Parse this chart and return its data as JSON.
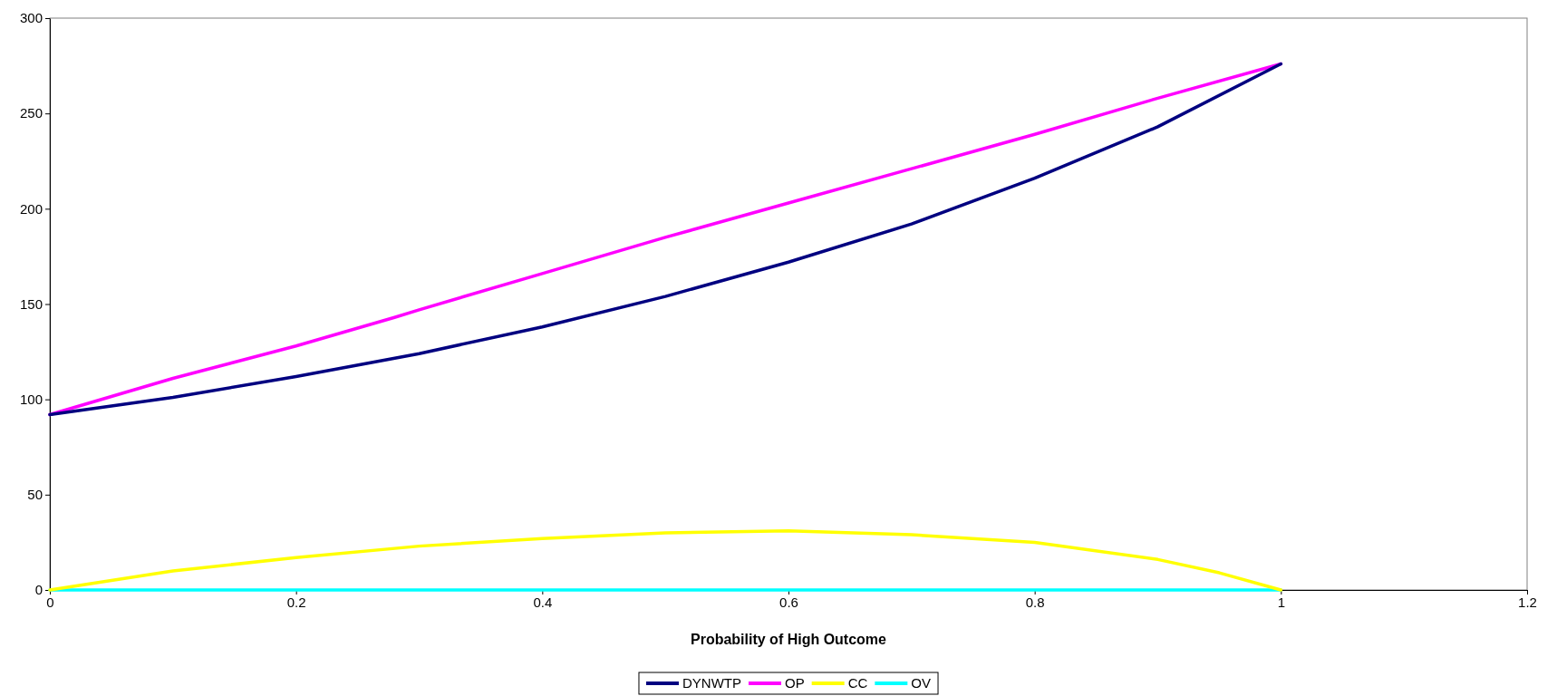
{
  "chart_data": {
    "type": "line",
    "xlabel": "Probability of High Outcome",
    "xlim": [
      0,
      1.2
    ],
    "xticks": [
      0,
      0.2,
      0.4,
      0.6,
      0.8,
      1,
      1.2
    ],
    "ylim": [
      0,
      300
    ],
    "yticks": [
      0,
      50,
      100,
      150,
      200,
      250,
      300
    ],
    "grid": false,
    "legend": "bottom",
    "marker": "none",
    "line_style": "solid",
    "series": [
      {
        "name": "DYNWTP",
        "color": "#000080",
        "x": [
          0,
          0.1,
          0.2,
          0.3,
          0.4,
          0.5,
          0.6,
          0.7,
          0.8,
          0.9,
          1
        ],
        "values": [
          92,
          101,
          112,
          124,
          138,
          154,
          172,
          192,
          216,
          243,
          276
        ]
      },
      {
        "name": "OP",
        "color": "#ff00ff",
        "x": [
          0,
          0.1,
          0.2,
          0.28,
          0.3,
          0.4,
          0.5,
          0.6,
          0.7,
          0.8,
          0.9,
          1
        ],
        "values": [
          92,
          111,
          128,
          143,
          147,
          166,
          185,
          203,
          221,
          239,
          258,
          276
        ]
      },
      {
        "name": "CC",
        "color": "#ffff00",
        "x": [
          0,
          0.1,
          0.2,
          0.3,
          0.4,
          0.5,
          0.6,
          0.7,
          0.8,
          0.9,
          0.95,
          1
        ],
        "values": [
          0,
          10,
          17,
          23,
          27,
          30,
          31,
          29,
          25,
          16,
          9,
          0
        ]
      },
      {
        "name": "OV",
        "color": "#00ffff",
        "x": [
          0,
          1
        ],
        "values": [
          0,
          0
        ]
      }
    ]
  }
}
